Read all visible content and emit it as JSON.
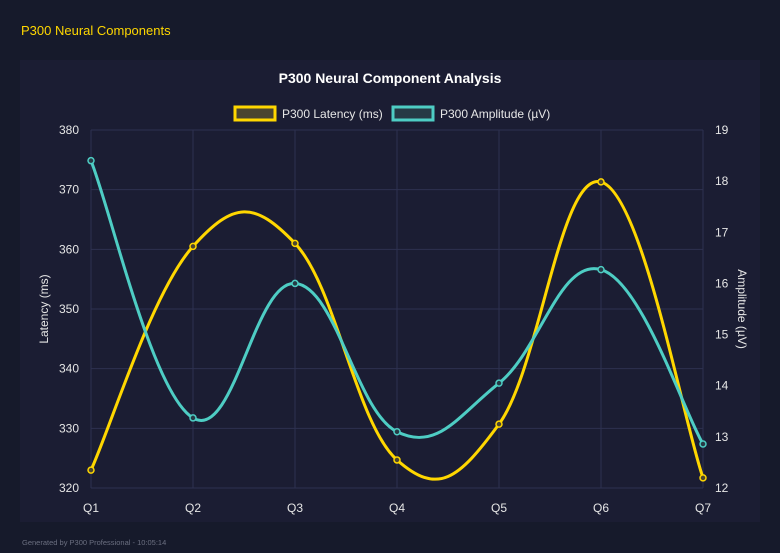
{
  "page_title": "P300 Neural Components",
  "footer": "Generated by P300 Professional - 10:05:14",
  "colors": {
    "latency": "#ffd700",
    "amplitude": "#4ecdc4"
  },
  "chart_data": {
    "type": "line",
    "title": "P300 Neural Component Analysis",
    "categories": [
      "Q1",
      "Q2",
      "Q3",
      "Q4",
      "Q5",
      "Q6",
      "Q7"
    ],
    "series": [
      {
        "name": "P300 Latency (ms)",
        "axis": "left",
        "values": [
          323,
          360.5,
          361,
          324.7,
          330.7,
          371.3,
          321.7
        ]
      },
      {
        "name": "P300 Amplitude (µV)",
        "axis": "right",
        "values": [
          18.4,
          13.37,
          16.0,
          13.1,
          14.05,
          16.27,
          12.86
        ]
      }
    ],
    "ylabel": "Latency (ms)",
    "y2label": "Amplitude (µV)",
    "ylim": [
      320,
      380
    ],
    "y2lim": [
      12,
      19
    ],
    "yticks": [
      "320",
      "330",
      "340",
      "350",
      "360",
      "370",
      "380"
    ],
    "y2ticks": [
      "12",
      "13",
      "14",
      "15",
      "16",
      "17",
      "18",
      "19"
    ],
    "grid": true,
    "legend": "top"
  }
}
